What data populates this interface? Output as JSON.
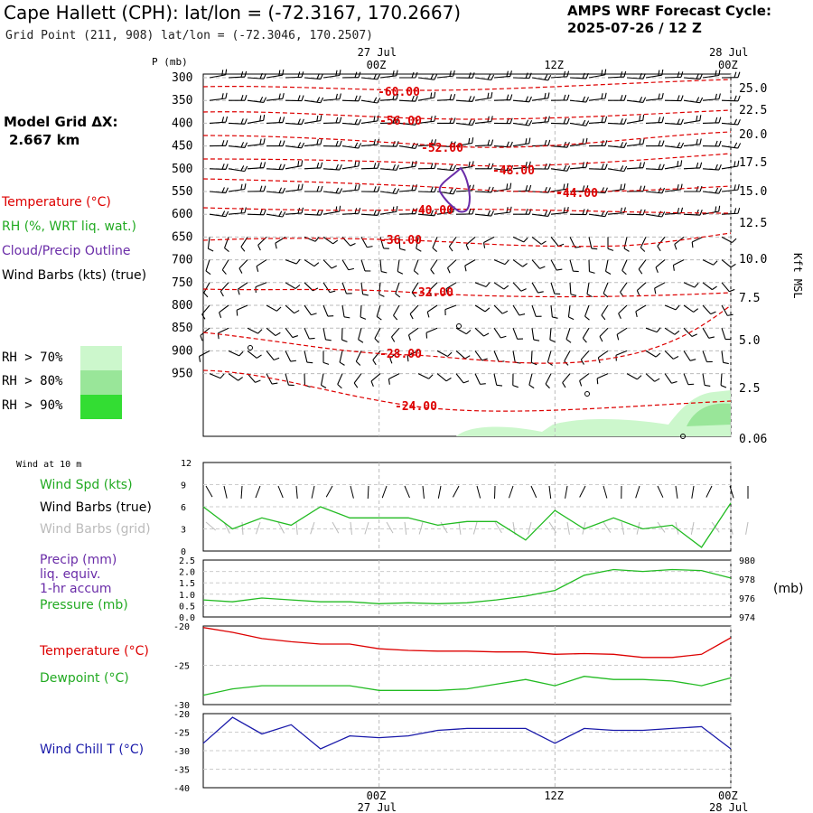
{
  "header": {
    "title": "Cape Hallett (CPH):  lat/lon = (-72.3167, 170.2667)",
    "subtitle": "Grid Point (211, 908) lat/lon = (-72.3046, 170.2507)",
    "cycle_line1": "AMPS WRF Forecast Cycle:",
    "cycle_line2": "2025-07-26 / 12  Z",
    "model_grid_label": "Model Grid ΔX:",
    "model_grid_value": "2.667 km"
  },
  "time_axis": {
    "top_dates": [
      "27 Jul",
      "28 Jul"
    ],
    "ticks": [
      "00Z",
      "12Z",
      "00Z"
    ],
    "bottom_dates": [
      "27 Jul",
      "28 Jul"
    ]
  },
  "cross_section": {
    "pressure_label": "P (mb)",
    "pressure_levels": [
      "300",
      "350",
      "400",
      "450",
      "500",
      "550",
      "600",
      "650",
      "700",
      "750",
      "800",
      "850",
      "900",
      "950"
    ],
    "height_labels": [
      "25.0",
      "22.5",
      "20.0",
      "17.5",
      "15.0",
      "12.5",
      "10.0",
      "7.5",
      "5.0",
      "2.5",
      "0.06"
    ],
    "height_axis_label": "Kft MSL",
    "legend": {
      "temperature": "Temperature (°C)",
      "rh": "RH (%, WRT liq. wat.)",
      "cloud": "Cloud/Precip Outline",
      "wind": "Wind Barbs (kts) (true)"
    },
    "rh_legend": [
      "RH > 70%",
      "RH > 80%",
      "RH > 90%"
    ],
    "isotherm_labels": [
      "-60.00",
      "-56.00",
      "-52.00",
      "-48.00",
      "-44.00",
      "-40.00",
      "-36.00",
      "-32.00",
      "-28.00",
      "-24.00"
    ],
    "colors": {
      "isotherm": "#dd0000",
      "cloud": "#6a2ca8",
      "rh70": "#ccf7cc",
      "rh80": "#99e699",
      "rh90": "#33dd33"
    }
  },
  "panels": {
    "wind": {
      "title": "Wind at 10 m",
      "legend": [
        "Wind Spd (kts)",
        "Wind Barbs (true)",
        "Wind Barbs (grid)"
      ],
      "yticks": [
        "12",
        "9",
        "6",
        "3",
        "0"
      ]
    },
    "precip": {
      "legend": [
        "Precip (mm)",
        "liq. equiv.",
        "1-hr accum",
        "Pressure (mb)"
      ],
      "left_ticks": [
        "2.5",
        "2.0",
        "1.5",
        "1.0",
        "0.5",
        "0.0"
      ],
      "right_ticks": [
        "980",
        "978",
        "976",
        "974"
      ],
      "right_unit": "(mb)"
    },
    "temp": {
      "legend": [
        "Temperature (°C)",
        "Dewpoint (°C)"
      ],
      "yticks": [
        "-20",
        "-25",
        "-30"
      ]
    },
    "windchill": {
      "legend": [
        "Wind Chill T (°C)"
      ],
      "yticks": [
        "-20",
        "-25",
        "-30",
        "-35",
        "-40"
      ]
    }
  },
  "chart_data": [
    {
      "type": "line",
      "title": "Wind at 10 m",
      "x": [
        "26 Jul 12Z",
        "26 Jul 14Z",
        "26 Jul 16Z",
        "26 Jul 18Z",
        "26 Jul 20Z",
        "26 Jul 22Z",
        "27 Jul 00Z",
        "27 Jul 02Z",
        "27 Jul 04Z",
        "27 Jul 06Z",
        "27 Jul 08Z",
        "27 Jul 10Z",
        "27 Jul 12Z",
        "27 Jul 14Z",
        "27 Jul 16Z",
        "27 Jul 18Z",
        "27 Jul 20Z",
        "27 Jul 22Z",
        "28 Jul 00Z"
      ],
      "series": [
        {
          "name": "Wind Spd (kts)",
          "values": [
            6.0,
            3.0,
            4.5,
            3.5,
            6.0,
            4.5,
            4.5,
            4.5,
            3.5,
            4.0,
            4.0,
            1.5,
            5.5,
            3.0,
            4.5,
            3.0,
            3.5,
            0.5,
            6.5
          ]
        }
      ],
      "ylim": [
        0,
        12
      ]
    },
    {
      "type": "line",
      "title": "Pressure (mb)",
      "x": [
        "26 Jul 12Z",
        "26 Jul 14Z",
        "26 Jul 16Z",
        "26 Jul 18Z",
        "26 Jul 20Z",
        "26 Jul 22Z",
        "27 Jul 00Z",
        "27 Jul 02Z",
        "27 Jul 04Z",
        "27 Jul 06Z",
        "27 Jul 08Z",
        "27 Jul 10Z",
        "27 Jul 12Z",
        "27 Jul 14Z",
        "27 Jul 16Z",
        "27 Jul 18Z",
        "27 Jul 20Z",
        "27 Jul 22Z",
        "28 Jul 00Z"
      ],
      "series": [
        {
          "name": "Pressure (mb)",
          "values": [
            975.8,
            975.6,
            976.0,
            975.8,
            975.6,
            975.6,
            975.4,
            975.5,
            975.4,
            975.5,
            975.8,
            976.2,
            976.8,
            978.4,
            979.0,
            978.8,
            979.0,
            978.9,
            978.1
          ]
        }
      ],
      "ylim": [
        974,
        980
      ]
    },
    {
      "type": "line",
      "x": [
        "26 Jul 12Z",
        "26 Jul 14Z",
        "26 Jul 16Z",
        "26 Jul 18Z",
        "26 Jul 20Z",
        "26 Jul 22Z",
        "27 Jul 00Z",
        "27 Jul 02Z",
        "27 Jul 04Z",
        "27 Jul 06Z",
        "27 Jul 08Z",
        "27 Jul 10Z",
        "27 Jul 12Z",
        "27 Jul 14Z",
        "27 Jul 16Z",
        "27 Jul 18Z",
        "27 Jul 20Z",
        "27 Jul 22Z",
        "28 Jul 00Z"
      ],
      "series": [
        {
          "name": "Temperature (°C)",
          "values": [
            -20.2,
            -20.8,
            -21.6,
            -22.0,
            -22.3,
            -22.3,
            -22.9,
            -23.1,
            -23.2,
            -23.2,
            -23.3,
            -23.3,
            -23.6,
            -23.5,
            -23.6,
            -24.0,
            -24.0,
            -23.6,
            -21.5
          ]
        },
        {
          "name": "Dewpoint (°C)",
          "values": [
            -28.8,
            -28.0,
            -27.6,
            -27.6,
            -27.6,
            -27.6,
            -28.2,
            -28.2,
            -28.2,
            -28.0,
            -27.4,
            -26.8,
            -27.6,
            -26.4,
            -26.8,
            -26.8,
            -27.0,
            -27.6,
            -26.6
          ]
        }
      ],
      "ylim": [
        -30,
        -20
      ]
    },
    {
      "type": "line",
      "x": [
        "26 Jul 12Z",
        "26 Jul 14Z",
        "26 Jul 16Z",
        "26 Jul 18Z",
        "26 Jul 20Z",
        "26 Jul 22Z",
        "27 Jul 00Z",
        "27 Jul 02Z",
        "27 Jul 04Z",
        "27 Jul 06Z",
        "27 Jul 08Z",
        "27 Jul 10Z",
        "27 Jul 12Z",
        "27 Jul 14Z",
        "27 Jul 16Z",
        "27 Jul 18Z",
        "27 Jul 20Z",
        "27 Jul 22Z",
        "28 Jul 00Z"
      ],
      "series": [
        {
          "name": "Wind Chill T (°C)",
          "values": [
            -28.0,
            -21.0,
            -25.5,
            -23.0,
            -29.5,
            -26.0,
            -26.5,
            -26.0,
            -24.5,
            -24.0,
            -24.0,
            -24.0,
            -28.0,
            -24.0,
            -24.5,
            -24.5,
            -24.0,
            -23.5,
            -29.5
          ]
        }
      ],
      "ylim": [
        -40,
        -20
      ]
    }
  ]
}
